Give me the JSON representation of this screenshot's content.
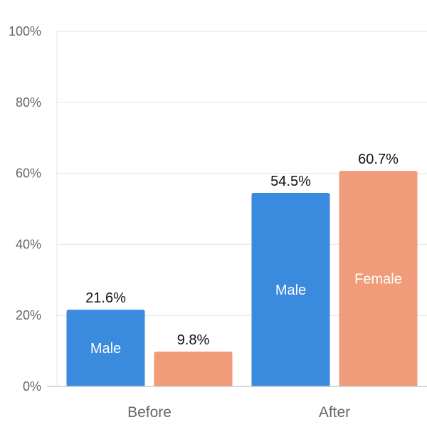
{
  "chart_data": {
    "type": "bar",
    "categories": [
      "Before",
      "After"
    ],
    "series": [
      {
        "name": "Male",
        "values": [
          21.6,
          54.5
        ],
        "color": "#3a8ade",
        "value_labels": [
          "21.6%",
          "54.5%"
        ],
        "inside_labels": [
          "Male",
          "Male"
        ]
      },
      {
        "name": "Female",
        "values": [
          9.8,
          60.7
        ],
        "color": "#f09b7a",
        "value_labels": [
          "9.8%",
          "60.7%"
        ],
        "inside_labels": [
          "",
          "Female"
        ]
      }
    ],
    "ylim": [
      0,
      100
    ],
    "yticks": [
      0,
      20,
      40,
      60,
      80,
      100
    ],
    "ytick_labels": [
      "0%",
      "20%",
      "40%",
      "60%",
      "80%",
      "100%"
    ],
    "grid": true,
    "legend": "none"
  }
}
